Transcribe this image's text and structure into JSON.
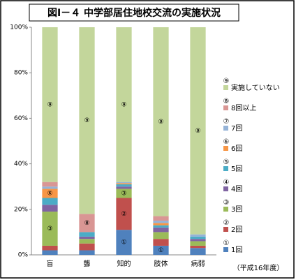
{
  "chart_data": {
    "type": "stacked-bar",
    "title": "図Ⅰ－４ 中学部居住地校交流の実施状況",
    "note": "（平成16年度）",
    "categories": [
      "盲",
      "聾",
      "知的",
      "肢体",
      "病弱"
    ],
    "series": [
      {
        "name": "1回",
        "label": "①",
        "color": "#4f81bd",
        "values": [
          2,
          2,
          11,
          4,
          3
        ]
      },
      {
        "name": "2回",
        "label": "②",
        "color": "#c0504d",
        "values": [
          2,
          3,
          14,
          3,
          1
        ]
      },
      {
        "name": "3回",
        "label": "③",
        "color": "#9bbb59",
        "values": [
          15,
          2,
          4,
          3,
          2
        ]
      },
      {
        "name": "4回",
        "label": "④",
        "color": "#8064a2",
        "values": [
          3,
          1,
          1,
          2,
          1
        ]
      },
      {
        "name": "5回",
        "label": "⑤",
        "color": "#4bacc6",
        "values": [
          3,
          2,
          1,
          1,
          1
        ]
      },
      {
        "name": "6回",
        "label": "⑥",
        "color": "#f79646",
        "values": [
          4,
          0,
          0.5,
          1,
          0
        ]
      },
      {
        "name": "7回",
        "label": "⑦",
        "color": "#95b3d7",
        "values": [
          1,
          0,
          0.5,
          1,
          1
        ]
      },
      {
        "name": "8回以上",
        "label": "⑧",
        "color": "#d99694",
        "values": [
          2,
          8,
          0,
          2,
          0
        ]
      },
      {
        "name": "実施していない",
        "label": "⑨",
        "color": "#c3d69b",
        "values": [
          68,
          82,
          68,
          83,
          91
        ]
      }
    ],
    "ylim": [
      0,
      100
    ],
    "yticks": [
      {
        "value": 0,
        "label": "0%"
      },
      {
        "value": 20,
        "label": "20%"
      },
      {
        "value": 40,
        "label": "40%"
      },
      {
        "value": 60,
        "label": "60%"
      },
      {
        "value": 80,
        "label": "80%"
      },
      {
        "value": 100,
        "label": "100%"
      }
    ],
    "grid": false
  }
}
